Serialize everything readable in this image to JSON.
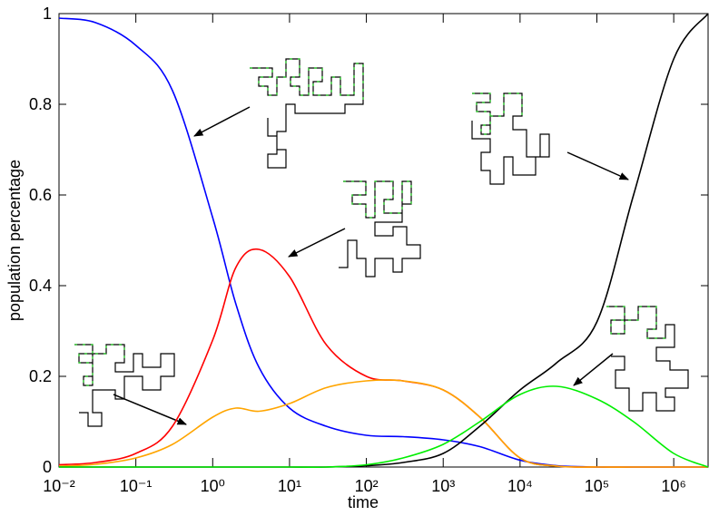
{
  "chart_data": {
    "type": "line",
    "x_label": "time",
    "y_label": "population percentage",
    "log_x": true,
    "x": [
      0.01,
      0.03,
      0.1,
      0.3,
      1,
      2,
      4,
      10,
      30,
      100,
      300,
      1000,
      3000,
      10000,
      30000,
      100000,
      300000,
      1000000,
      2800000
    ],
    "xlim": [
      0.01,
      2800000
    ],
    "xticks": [
      {
        "value": 0.01,
        "label": "10⁻²"
      },
      {
        "value": 0.1,
        "label": "10⁻¹"
      },
      {
        "value": 1,
        "label": "10⁰"
      },
      {
        "value": 10,
        "label": "10¹"
      },
      {
        "value": 100,
        "label": "10²"
      },
      {
        "value": 1000,
        "label": "10³"
      },
      {
        "value": 10000,
        "label": "10⁴"
      },
      {
        "value": 100000,
        "label": "10⁵"
      },
      {
        "value": 1000000,
        "label": "10⁶"
      }
    ],
    "ylim": [
      0,
      1
    ],
    "yticks": [
      0,
      0.2,
      0.4,
      0.6,
      0.8,
      1
    ],
    "series": [
      {
        "color": "#0000ff",
        "values": [
          0.99,
          0.98,
          0.93,
          0.83,
          0.55,
          0.36,
          0.22,
          0.13,
          0.09,
          0.07,
          0.067,
          0.06,
          0.045,
          0.015,
          0.003,
          0,
          0,
          0,
          0
        ]
      },
      {
        "color": "#ff0000",
        "values": [
          0.005,
          0.01,
          0.03,
          0.09,
          0.28,
          0.44,
          0.48,
          0.42,
          0.27,
          0.2,
          0.19,
          0.17,
          0.11,
          0.02,
          0.002,
          0,
          0,
          0,
          0
        ]
      },
      {
        "color": "#ffa500",
        "values": [
          0.002,
          0.006,
          0.02,
          0.05,
          0.11,
          0.13,
          0.123,
          0.14,
          0.175,
          0.19,
          0.19,
          0.17,
          0.11,
          0.02,
          0.002,
          0,
          0,
          0,
          0
        ]
      },
      {
        "color": "#000000",
        "values": [
          0,
          0,
          0,
          0,
          0,
          0,
          0,
          0,
          0,
          0.003,
          0.01,
          0.03,
          0.09,
          0.17,
          0.23,
          0.32,
          0.6,
          0.9,
          1.0
        ]
      },
      {
        "color": "#00ee00",
        "values": [
          0,
          0,
          0,
          0,
          0,
          0,
          0,
          0,
          0,
          0.005,
          0.02,
          0.05,
          0.1,
          0.16,
          0.178,
          0.15,
          0.1,
          0.03,
          0
        ]
      }
    ]
  }
}
